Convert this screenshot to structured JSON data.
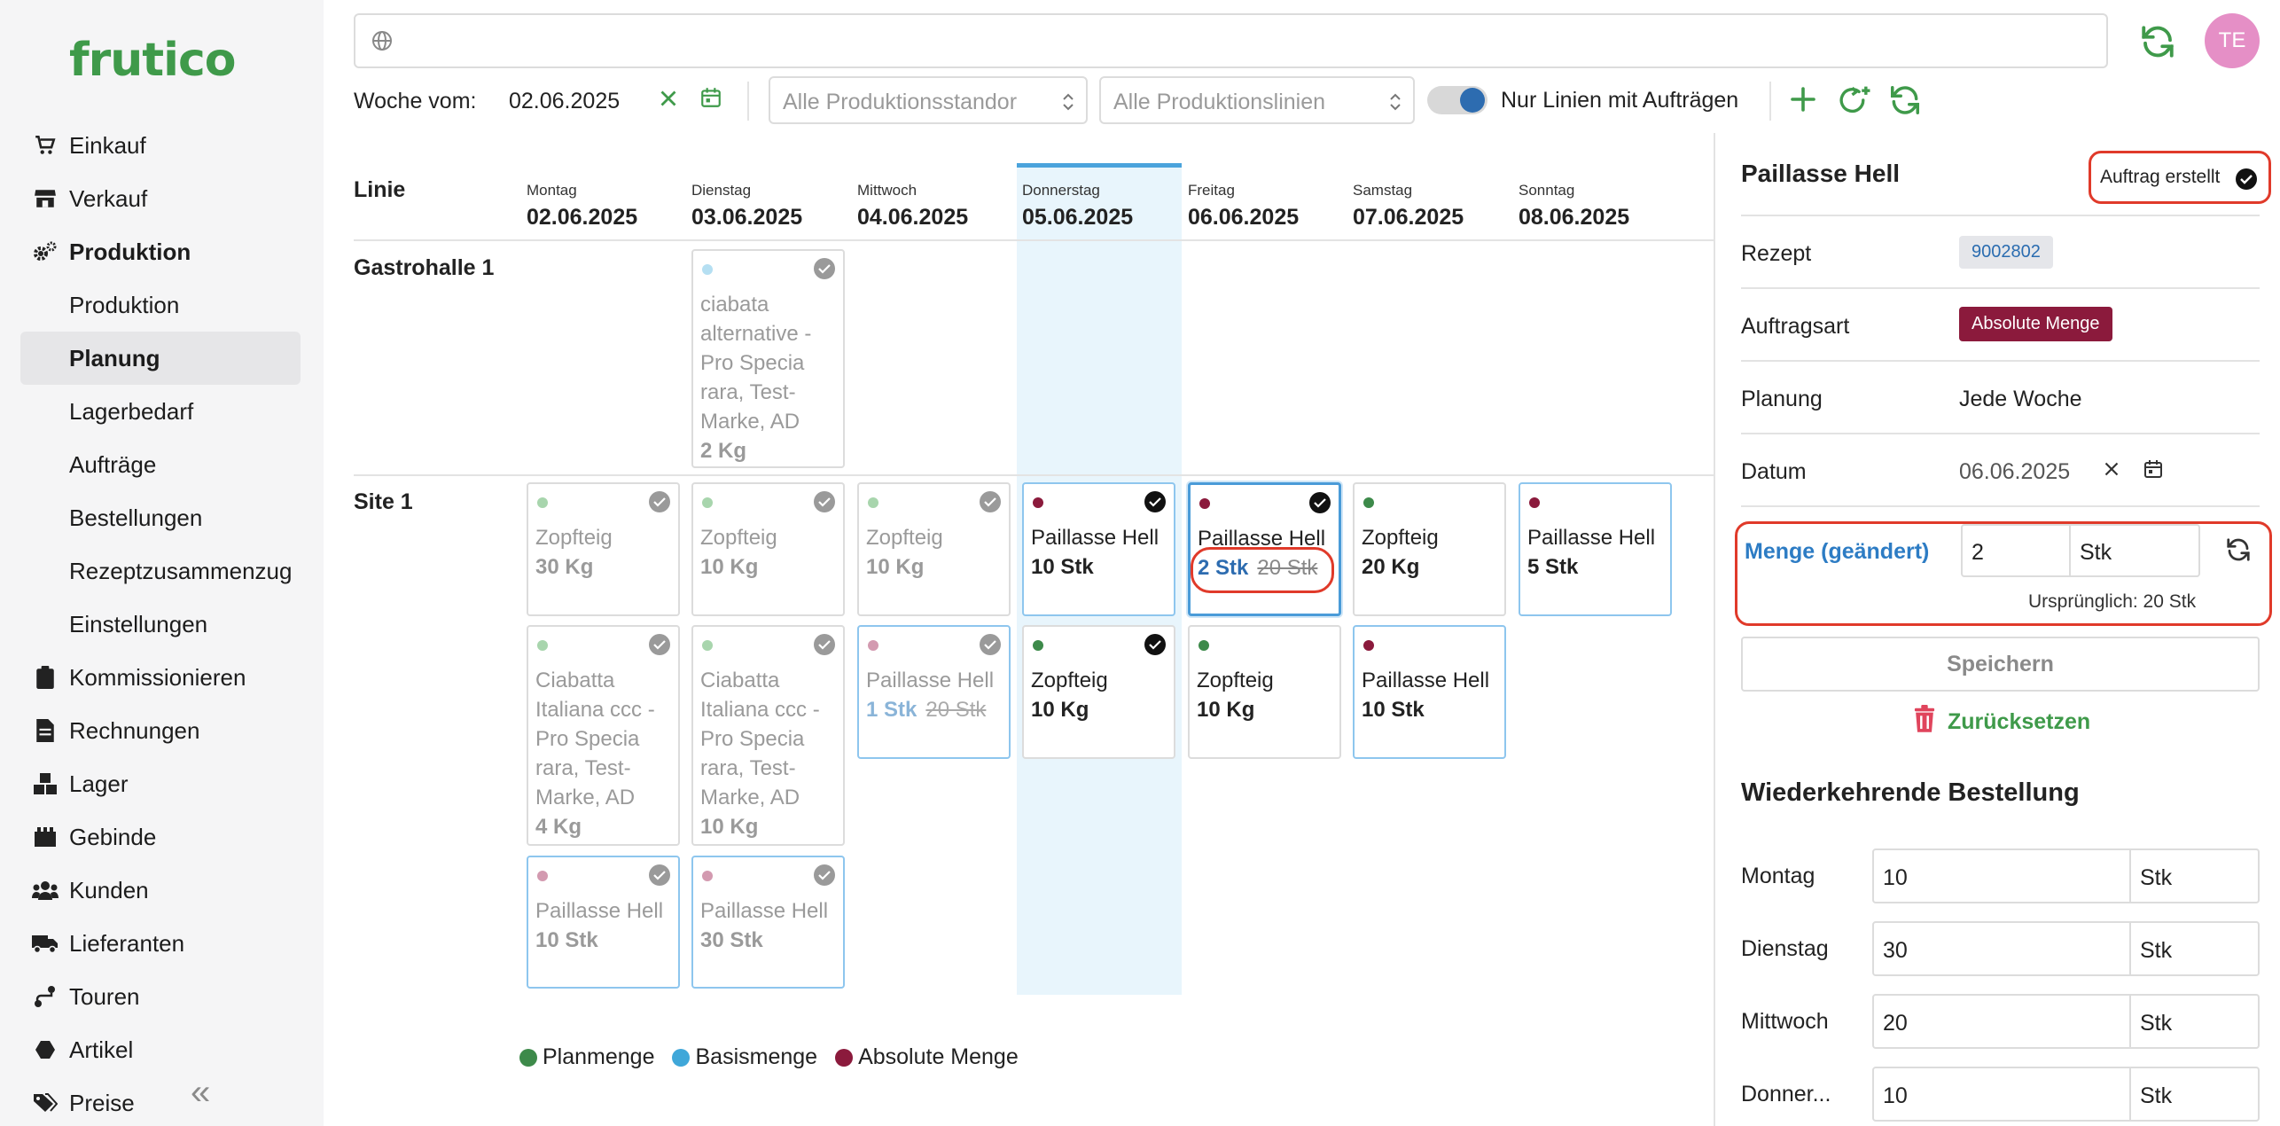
{
  "app": {
    "logo": "frutico",
    "avatar_initials": "TE"
  },
  "colors": {
    "plan": "#3d8a4a",
    "basis": "#3fa7d9",
    "absolute": "#8b1a3c",
    "brand": "#3f9a4a"
  },
  "sidebar": {
    "items": [
      {
        "label": "Einkauf",
        "icon": "cart-icon"
      },
      {
        "label": "Verkauf",
        "icon": "store-icon"
      },
      {
        "label": "Produktion",
        "icon": "gears-icon"
      },
      {
        "label": "Produktion",
        "icon": ""
      },
      {
        "label": "Planung",
        "icon": "",
        "active": true
      },
      {
        "label": "Lagerbedarf",
        "icon": ""
      },
      {
        "label": "Aufträge",
        "icon": ""
      },
      {
        "label": "Bestellungen",
        "icon": ""
      },
      {
        "label": "Rezeptzusammenzug",
        "icon": ""
      },
      {
        "label": "Einstellungen",
        "icon": ""
      },
      {
        "label": "Kommissionieren",
        "icon": "clipboard-icon"
      },
      {
        "label": "Rechnungen",
        "icon": "invoice-icon"
      },
      {
        "label": "Lager",
        "icon": "boxes-icon"
      },
      {
        "label": "Gebinde",
        "icon": "crate-icon"
      },
      {
        "label": "Kunden",
        "icon": "users-icon"
      },
      {
        "label": "Lieferanten",
        "icon": "truck-icon"
      },
      {
        "label": "Touren",
        "icon": "route-icon"
      },
      {
        "label": "Artikel",
        "icon": "hexagon-icon"
      },
      {
        "label": "Preise",
        "icon": "tags-icon"
      }
    ],
    "collapse_glyph": "«"
  },
  "toolbar": {
    "week_label": "Woche vom:",
    "week_date": "02.06.2025",
    "standort_placeholder": "Alle Produktionsstandor",
    "linien_placeholder": "Alle Produktionslinien",
    "toggle_label": "Nur Linien mit Aufträgen",
    "toggle_on": true
  },
  "grid": {
    "linie_header": "Linie",
    "days": [
      {
        "name": "Montag",
        "date": "02.06.2025"
      },
      {
        "name": "Dienstag",
        "date": "03.06.2025"
      },
      {
        "name": "Mittwoch",
        "date": "04.06.2025"
      },
      {
        "name": "Donnerstag",
        "date": "05.06.2025"
      },
      {
        "name": "Freitag",
        "date": "06.06.2025"
      },
      {
        "name": "Samstag",
        "date": "07.06.2025"
      },
      {
        "name": "Sonntag",
        "date": "08.06.2025"
      }
    ],
    "groups": [
      "Gastrohalle 1",
      "Site 1"
    ],
    "cards": [
      {
        "name": "ciabata alternative - Pro Specia rara, Test-Marke, AD",
        "qty": "2 Kg"
      },
      {
        "name": "Zopfteig",
        "qty": "30 Kg"
      },
      {
        "name": "Zopfteig",
        "qty": "10 Kg"
      },
      {
        "name": "Zopfteig",
        "qty": "10 Kg"
      },
      {
        "name": "Paillasse Hell",
        "qty": "10 Stk"
      },
      {
        "name": "Paillasse Hell",
        "qty": "2 Stk",
        "original": "20 Stk"
      },
      {
        "name": "Zopfteig",
        "qty": "20 Kg"
      },
      {
        "name": "Paillasse Hell",
        "qty": "5 Stk"
      },
      {
        "name": "Ciabatta Italiana ccc - Pro Specia rara, Test-Marke, AD",
        "qty": "4 Kg"
      },
      {
        "name": "Ciabatta Italiana ccc - Pro Specia rara, Test-Marke, AD",
        "qty": "10 Kg"
      },
      {
        "name": "Paillasse Hell",
        "qty": "1 Stk",
        "original": "20 Stk"
      },
      {
        "name": "Zopfteig",
        "qty": "10 Kg"
      },
      {
        "name": "Zopfteig",
        "qty": "10 Kg"
      },
      {
        "name": "Paillasse Hell",
        "qty": "10 Stk"
      },
      {
        "name": "Paillasse Hell",
        "qty": "10 Stk"
      },
      {
        "name": "Paillasse Hell",
        "qty": "30 Stk"
      }
    ]
  },
  "legend": [
    {
      "label": "Planmenge"
    },
    {
      "label": "Basismenge"
    },
    {
      "label": "Absolute Menge"
    }
  ],
  "detail": {
    "title": "Paillasse Hell",
    "status": "Auftrag erstellt",
    "rezept_label": "Rezept",
    "rezept_value": "9002802",
    "auftragsart_label": "Auftragsart",
    "auftragsart_value": "Absolute Menge",
    "planung_label": "Planung",
    "planung_value": "Jede Woche",
    "datum_label": "Datum",
    "datum_value": "06.06.2025",
    "menge_label": "Menge (geändert)",
    "menge_value": "2",
    "menge_unit": "Stk",
    "menge_original": "Ursprünglich: 20 Stk",
    "save_label": "Speichern",
    "reset_label": "Zurücksetzen",
    "recurring_title": "Wiederkehrende Bestellung",
    "recurring": [
      {
        "day": "Montag",
        "value": "10",
        "unit": "Stk"
      },
      {
        "day": "Dienstag",
        "value": "30",
        "unit": "Stk"
      },
      {
        "day": "Mittwoch",
        "value": "20",
        "unit": "Stk"
      },
      {
        "day": "Donner...",
        "value": "10",
        "unit": "Stk"
      }
    ]
  }
}
